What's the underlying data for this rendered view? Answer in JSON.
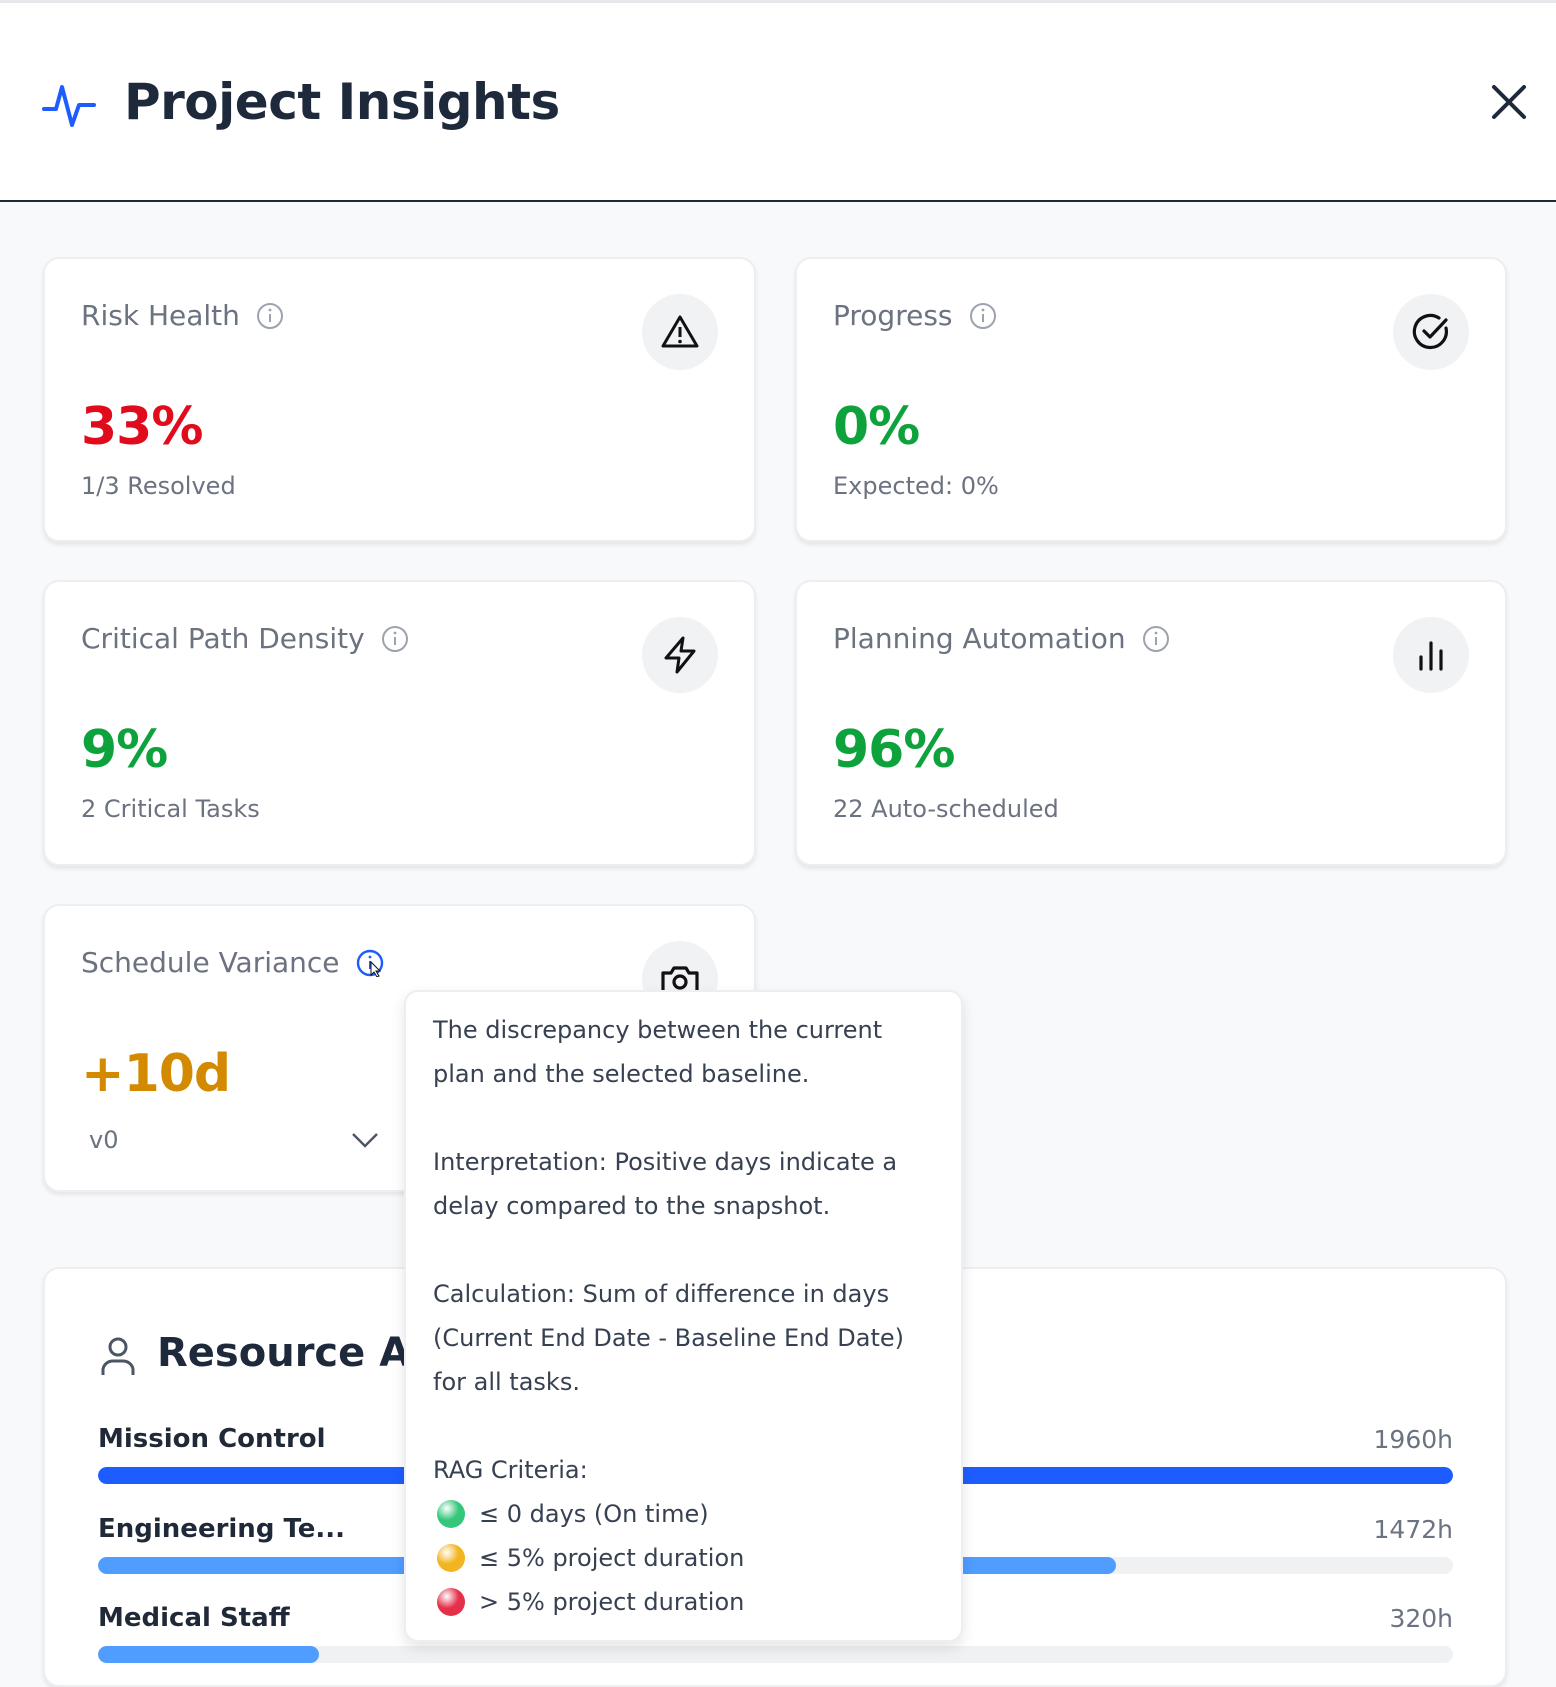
{
  "header": {
    "title": "Project Insights",
    "logo_icon": "activity-pulse-icon",
    "close_icon": "close-x-icon",
    "accent": "#1d5cff"
  },
  "cards": [
    {
      "label": "Risk Health",
      "value": "33%",
      "sub": "1/3 Resolved",
      "icon": "warning-triangle-icon",
      "value_color": "#e00b1c"
    },
    {
      "label": "Progress",
      "value": "0%",
      "sub": "Expected: 0%",
      "icon": "check-circle-icon",
      "value_color": "#0ea23c"
    },
    {
      "label": "Critical Path Density",
      "value": "9%",
      "sub": "2 Critical Tasks",
      "icon": "lightning-icon",
      "value_color": "#0ea23c"
    },
    {
      "label": "Planning Automation",
      "value": "96%",
      "sub": "22 Auto-scheduled",
      "icon": "bar-chart-icon",
      "value_color": "#0ea23c"
    },
    {
      "label": "Schedule Variance",
      "value": "+10d",
      "baseline_selected": "v0",
      "icon": "camera-icon",
      "value_color": "#d48a00"
    }
  ],
  "tooltip": {
    "paragraphs": [
      "The discrepancy between the current plan and the selected baseline.",
      "Interpretation: Positive days indicate a delay compared to the snapshot.",
      "Calculation: Sum of difference in days (Current End Date - Baseline End Date) for all tasks."
    ],
    "rag_title": "RAG Criteria:",
    "rag": [
      {
        "label": "≤ 0 days (On time)",
        "color": "#34c77b"
      },
      {
        "label": "≤ 5% project duration",
        "color": "#f2b420"
      },
      {
        "label": "> 5% project duration",
        "color": "#e5304a"
      }
    ]
  },
  "resources": {
    "title": "Resource Allo",
    "rows": [
      {
        "name": "Mission Control",
        "hours": "1960h",
        "fraction": 1.0,
        "color": "#1d5cff"
      },
      {
        "name": "Engineering Te...",
        "hours": "1472h",
        "fraction": 0.751,
        "color": "#4f9dff"
      },
      {
        "name": "Medical Staff",
        "hours": "320h",
        "fraction": 0.163,
        "color": "#4f9dff"
      }
    ]
  }
}
